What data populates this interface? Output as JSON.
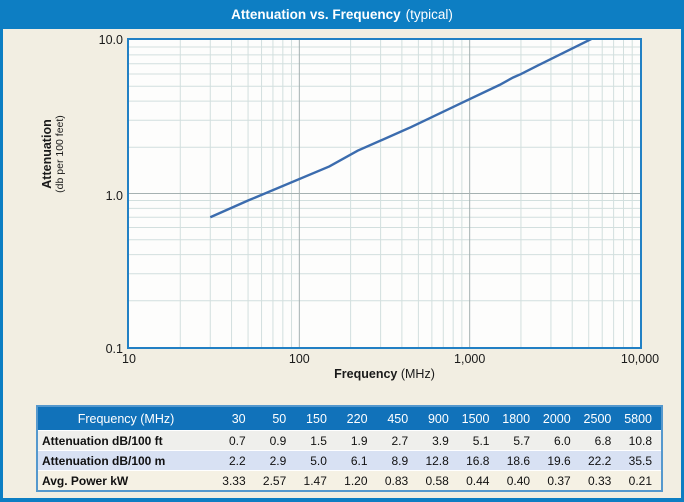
{
  "title": {
    "main": "Attenuation vs. Frequency",
    "suffix": "(typical)"
  },
  "chart_data": {
    "type": "line",
    "title": "Attenuation vs. Frequency (typical)",
    "xlabel": "Frequency (MHz)",
    "ylabel": "Attenuation (db per 100 feet)",
    "xscale": "log",
    "yscale": "log",
    "xlim": [
      10,
      10000
    ],
    "ylim": [
      0.1,
      10
    ],
    "grid": true,
    "legend": "none",
    "x_ticks": [
      "10",
      "100",
      "1,000",
      "10,000"
    ],
    "y_ticks": [
      "10.0",
      "1.0",
      "0.1"
    ],
    "x": [
      30,
      50,
      150,
      220,
      450,
      900,
      1500,
      1800,
      2000,
      2500,
      5800
    ],
    "series": [
      {
        "name": "Attenuation dB/100 ft",
        "values": [
          0.7,
          0.9,
          1.5,
          1.9,
          2.7,
          3.9,
          5.1,
          5.7,
          6.0,
          6.8,
          10.8
        ]
      }
    ],
    "line_color": "#3b6cae",
    "grid_minor_color": "#d2dfde",
    "grid_major_color": "#a5b1b1"
  },
  "axis": {
    "y_title": "Attenuation",
    "y_sub": "(db per 100 feet)",
    "x_title": "Frequency",
    "x_unit": "(MHz)"
  },
  "table": {
    "header_label": "Frequency (MHz)",
    "header_cols": [
      "30",
      "50",
      "150",
      "220",
      "450",
      "900",
      "1500",
      "1800",
      "2000",
      "2500",
      "5800"
    ],
    "rows": [
      {
        "label": "Attenuation dB/100 ft",
        "values": [
          "0.7",
          "0.9",
          "1.5",
          "1.9",
          "2.7",
          "3.9",
          "5.1",
          "5.7",
          "6.0",
          "6.8",
          "10.8"
        ]
      },
      {
        "label": "Attenuation dB/100 m",
        "values": [
          "2.2",
          "2.9",
          "5.0",
          "6.1",
          "8.9",
          "12.8",
          "16.8",
          "18.6",
          "19.6",
          "22.2",
          "35.5"
        ]
      },
      {
        "label": "Avg. Power kW",
        "values": [
          "3.33",
          "2.57",
          "1.47",
          "1.20",
          "0.83",
          "0.58",
          "0.44",
          "0.40",
          "0.37",
          "0.33",
          "0.21"
        ]
      }
    ]
  },
  "colors": {
    "accent_blue": "#0d7ec3",
    "table_header_blue": "#1172ba",
    "page_beige": "#f2eee2",
    "row_white": "#efefec",
    "row_blue": "#d8e1f3",
    "row_cream": "#f5f1e4",
    "plot_border": "#2280c4",
    "line": "#3b6cae"
  }
}
